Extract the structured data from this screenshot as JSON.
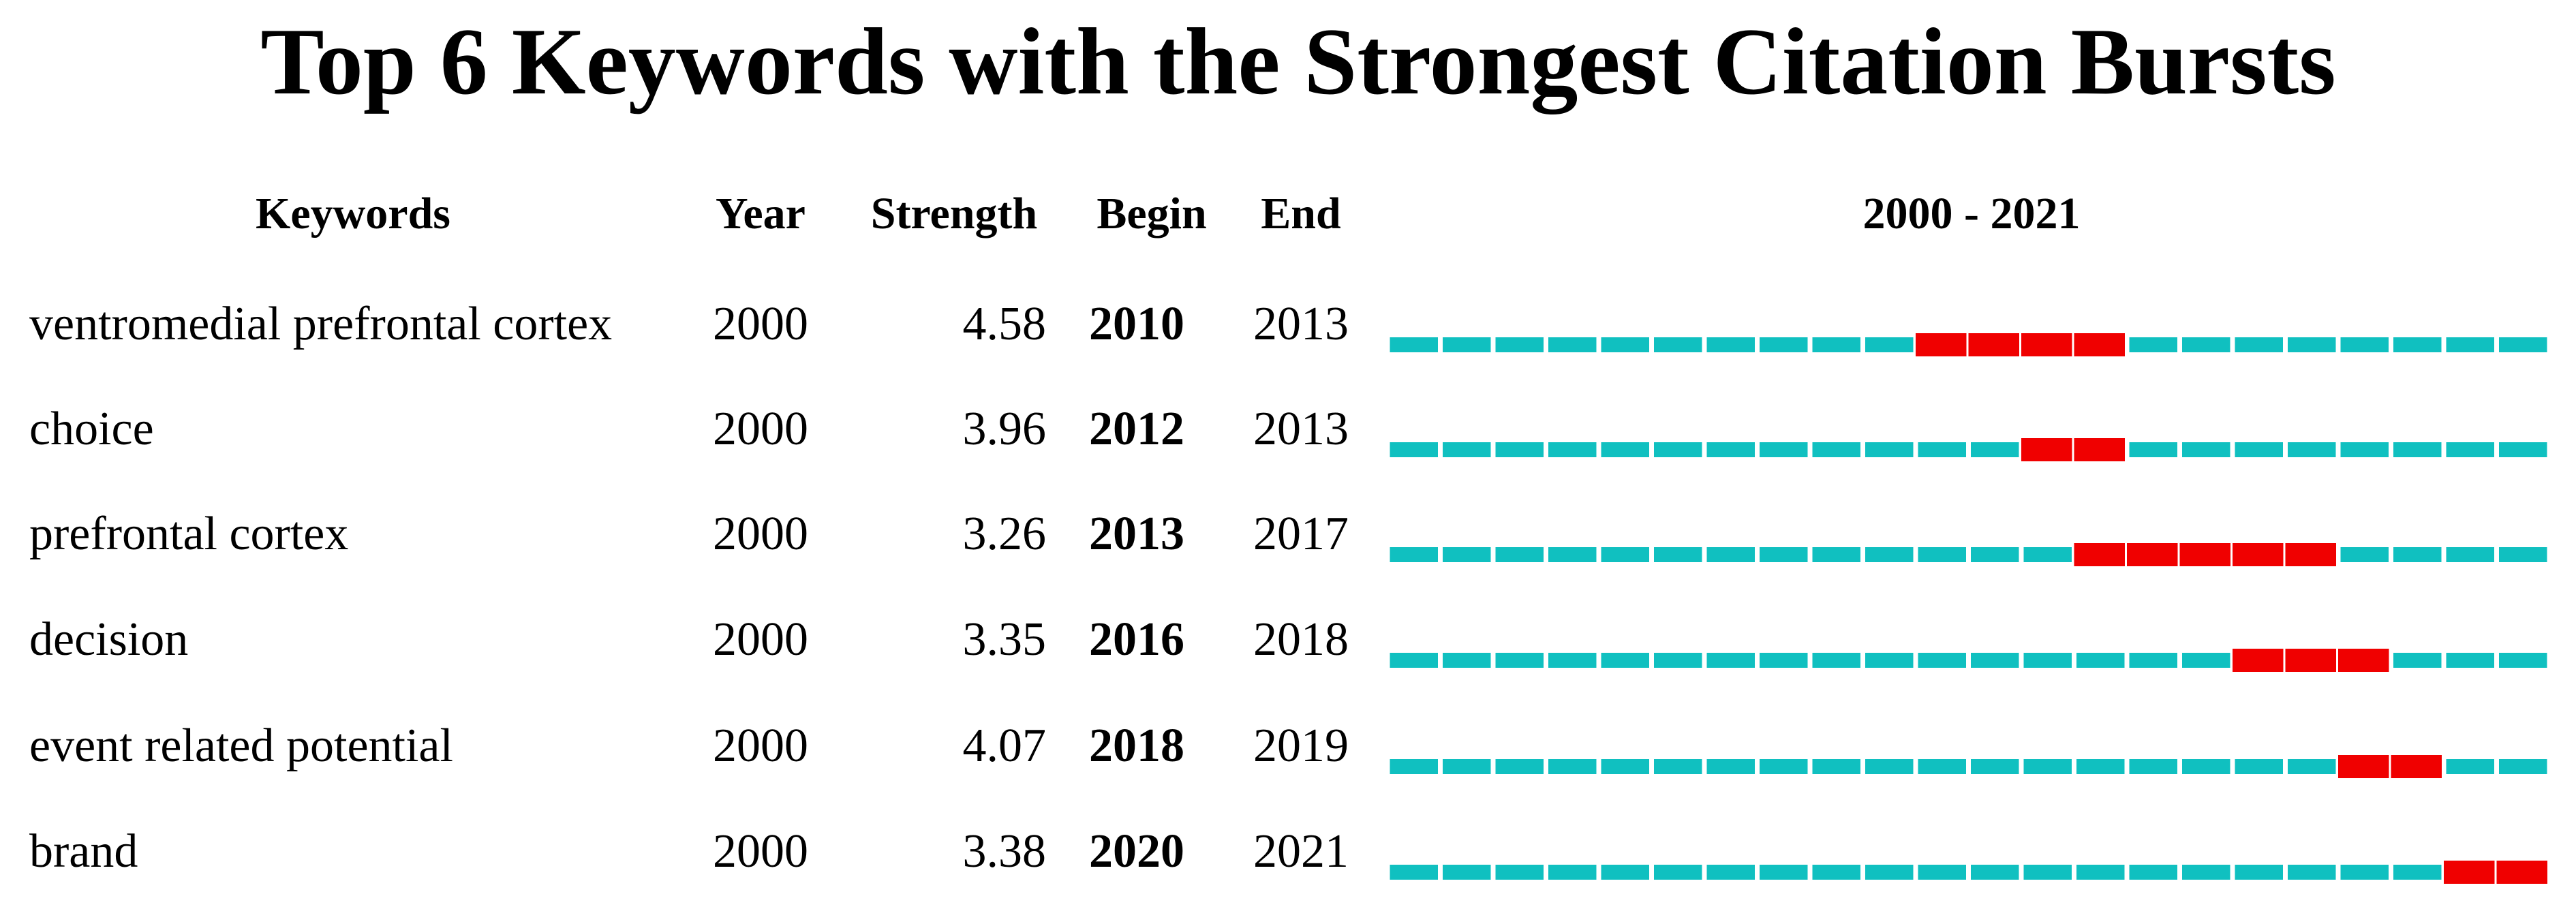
{
  "title": "Top 6 Keywords with the Strongest Citation Bursts",
  "header": {
    "keywords": "Keywords",
    "year": "Year",
    "strength": "Strength",
    "begin": "Begin",
    "end": "End"
  },
  "timeline": {
    "label": "2000 - 2021",
    "start": 2000,
    "end": 2021
  },
  "colors": {
    "base": "#10c0c0",
    "burst": "#f00000"
  },
  "rows": [
    {
      "keyword": "ventromedial prefrontal cortex",
      "year": 2000,
      "strength": 4.58,
      "begin": 2010,
      "end": 2013
    },
    {
      "keyword": "choice",
      "year": 2000,
      "strength": 3.96,
      "begin": 2012,
      "end": 2013
    },
    {
      "keyword": "prefrontal cortex",
      "year": 2000,
      "strength": 3.26,
      "begin": 2013,
      "end": 2017
    },
    {
      "keyword": "decision",
      "year": 2000,
      "strength": 3.35,
      "begin": 2016,
      "end": 2018
    },
    {
      "keyword": "event related potential",
      "year": 2000,
      "strength": 4.07,
      "begin": 2018,
      "end": 2019
    },
    {
      "keyword": "brand",
      "year": 2000,
      "strength": 3.38,
      "begin": 2020,
      "end": 2021
    }
  ]
}
